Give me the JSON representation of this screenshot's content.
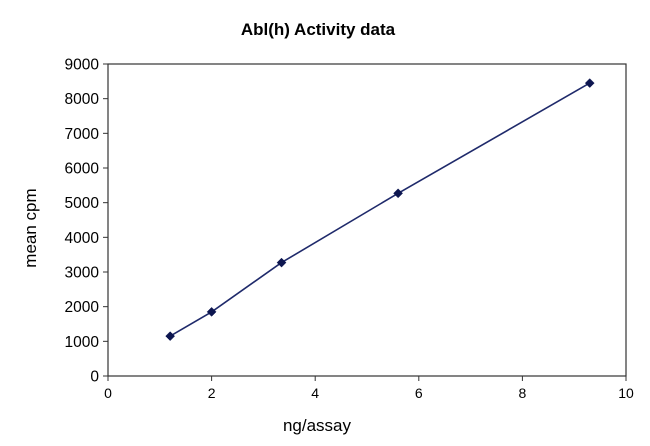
{
  "chart_data": {
    "type": "scatter",
    "title": "Abl(h) Activity data",
    "xlabel": "ng/assay",
    "ylabel": "mean cpm",
    "xlim": [
      0,
      10
    ],
    "ylim": [
      0,
      9000
    ],
    "xticks": [
      "0",
      "2",
      "4",
      "6",
      "8",
      "10"
    ],
    "yticks": [
      "0",
      "1000",
      "2000",
      "3000",
      "4000",
      "5000",
      "6000",
      "7000",
      "8000",
      "9000"
    ],
    "grid": false,
    "legend": "none",
    "series": [
      {
        "x": [
          1.2,
          2.0,
          3.35,
          5.6,
          9.3
        ],
        "y": [
          1150,
          1850,
          3270,
          5270,
          8450
        ],
        "line_color": "#1f2a6b",
        "marker_color": "#0d1650",
        "marker": "diamond",
        "line": true
      }
    ]
  }
}
